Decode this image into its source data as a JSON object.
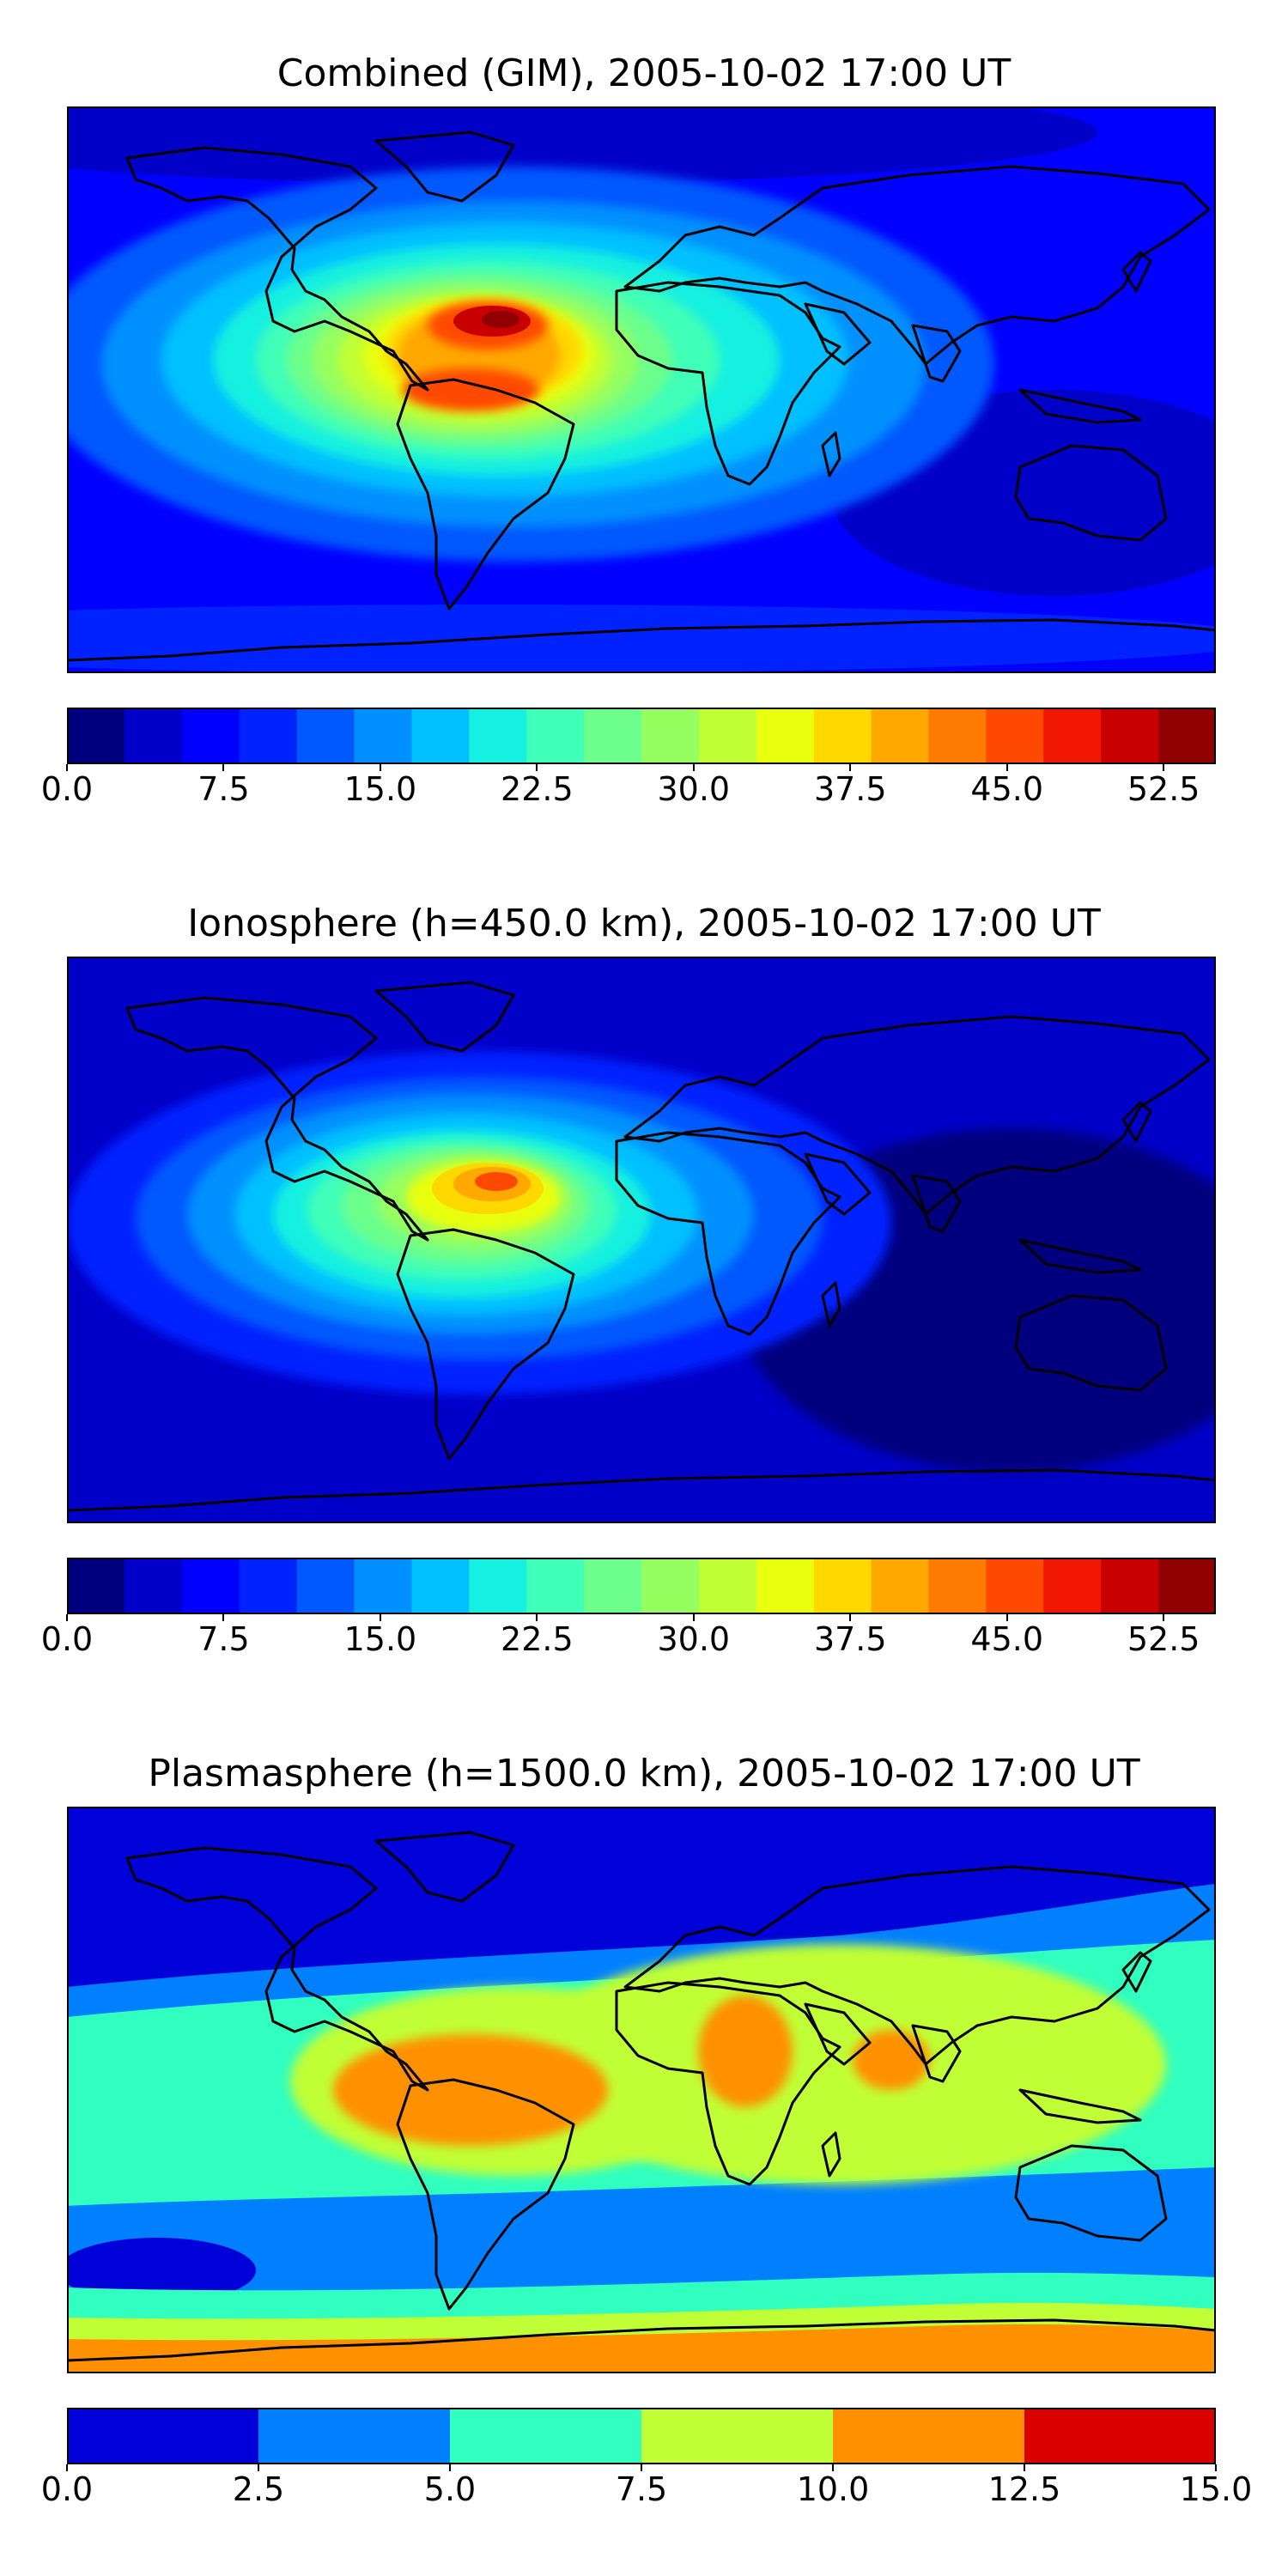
{
  "chart_data": [
    {
      "type": "heatmap",
      "title": "Combined (GIM), 2005-10-02 17:00 UT",
      "xlabel": "",
      "ylabel": "",
      "colorbar": {
        "levels": [
          0,
          2.75,
          5.5,
          8.25,
          11,
          13.75,
          16.5,
          19.25,
          22,
          24.75,
          27.5,
          30.25,
          33,
          35.75,
          38.5,
          41.25,
          44,
          46.75,
          49.5,
          52.25,
          55
        ],
        "colors": [
          "#00007f",
          "#0000c8",
          "#0000ff",
          "#0022ff",
          "#0058ff",
          "#0090ff",
          "#00c0ff",
          "#16f0e0",
          "#40ffb8",
          "#6cff8c",
          "#96ff60",
          "#c0ff36",
          "#e8ff0e",
          "#ffd800",
          "#ffa800",
          "#ff7a00",
          "#ff4800",
          "#f01600",
          "#c80000",
          "#900000"
        ],
        "tick_labels": [
          "0.0",
          "7.5",
          "15.0",
          "22.5",
          "30.0",
          "37.5",
          "45.0",
          "52.5"
        ],
        "tick_values": [
          0,
          7.5,
          15,
          22.5,
          30,
          37.5,
          45,
          52.5
        ],
        "range": [
          0,
          55
        ]
      },
      "peak_regions": [
        {
          "name": "northern South America",
          "value": 54
        },
        {
          "name": "central South America",
          "value": 48
        },
        {
          "name": "South Atlantic",
          "value": 38
        }
      ]
    },
    {
      "type": "heatmap",
      "title": "Ionosphere  (h=450.0 km), 2005-10-02 17:00 UT",
      "xlabel": "",
      "ylabel": "",
      "colorbar": {
        "levels": [
          0,
          2.75,
          5.5,
          8.25,
          11,
          13.75,
          16.5,
          19.25,
          22,
          24.75,
          27.5,
          30.25,
          33,
          35.75,
          38.5,
          41.25,
          44,
          46.75,
          49.5,
          52.25,
          55
        ],
        "colors": [
          "#00007f",
          "#0000c8",
          "#0000ff",
          "#0022ff",
          "#0058ff",
          "#0090ff",
          "#00c0ff",
          "#16f0e0",
          "#40ffb8",
          "#6cff8c",
          "#96ff60",
          "#c0ff36",
          "#e8ff0e",
          "#ffd800",
          "#ffa800",
          "#ff7a00",
          "#ff4800",
          "#f01600",
          "#c80000",
          "#900000"
        ],
        "tick_labels": [
          "0.0",
          "7.5",
          "15.0",
          "22.5",
          "30.0",
          "37.5",
          "45.0",
          "52.5"
        ],
        "tick_values": [
          0,
          7.5,
          15,
          22.5,
          30,
          37.5,
          45,
          52.5
        ],
        "range": [
          0,
          55
        ]
      },
      "peak_regions": [
        {
          "name": "northern South America",
          "value": 44
        },
        {
          "name": "tropical South Atlantic",
          "value": 32
        }
      ]
    },
    {
      "type": "heatmap",
      "title": "Plasmasphere (h=1500.0 km), 2005-10-02 17:00 UT",
      "xlabel": "",
      "ylabel": "",
      "colorbar": {
        "levels": [
          0,
          2.5,
          5,
          7.5,
          10,
          12.5,
          15
        ],
        "colors": [
          "#0000d8",
          "#0080ff",
          "#30ffc0",
          "#c0ff36",
          "#ff9000",
          "#d80000"
        ],
        "tick_labels": [
          "0.0",
          "2.5",
          "5.0",
          "7.5",
          "10.0",
          "12.5",
          "15.0"
        ],
        "tick_values": [
          0,
          2.5,
          5,
          7.5,
          10,
          12.5,
          15
        ],
        "range": [
          0,
          15
        ]
      },
      "peak_regions": [
        {
          "name": "South America",
          "value": 11
        },
        {
          "name": "East Africa",
          "value": 11
        },
        {
          "name": "Indian Ocean",
          "value": 11
        },
        {
          "name": "Antarctic coast",
          "value": 11
        }
      ]
    }
  ]
}
